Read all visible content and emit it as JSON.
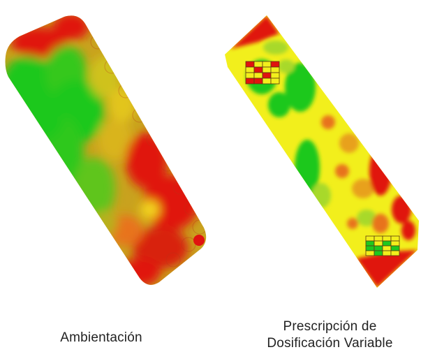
{
  "panels": {
    "left": {
      "caption": "Ambientación"
    },
    "right": {
      "caption_line1": "Prescripción de",
      "caption_line2": "Dosificación Variable"
    }
  },
  "colors": {
    "red": "#e0130f",
    "orange": "#e8731a",
    "yellow": "#f2ef1c",
    "lime": "#a8d92a",
    "green": "#1fc81f",
    "left_base": "#d4941f"
  },
  "icons": {
    "left_map": "zone-map-icon",
    "right_map": "prescription-map-icon",
    "legend_top": "rate-grid-icon",
    "legend_bottom": "rate-grid-icon"
  }
}
